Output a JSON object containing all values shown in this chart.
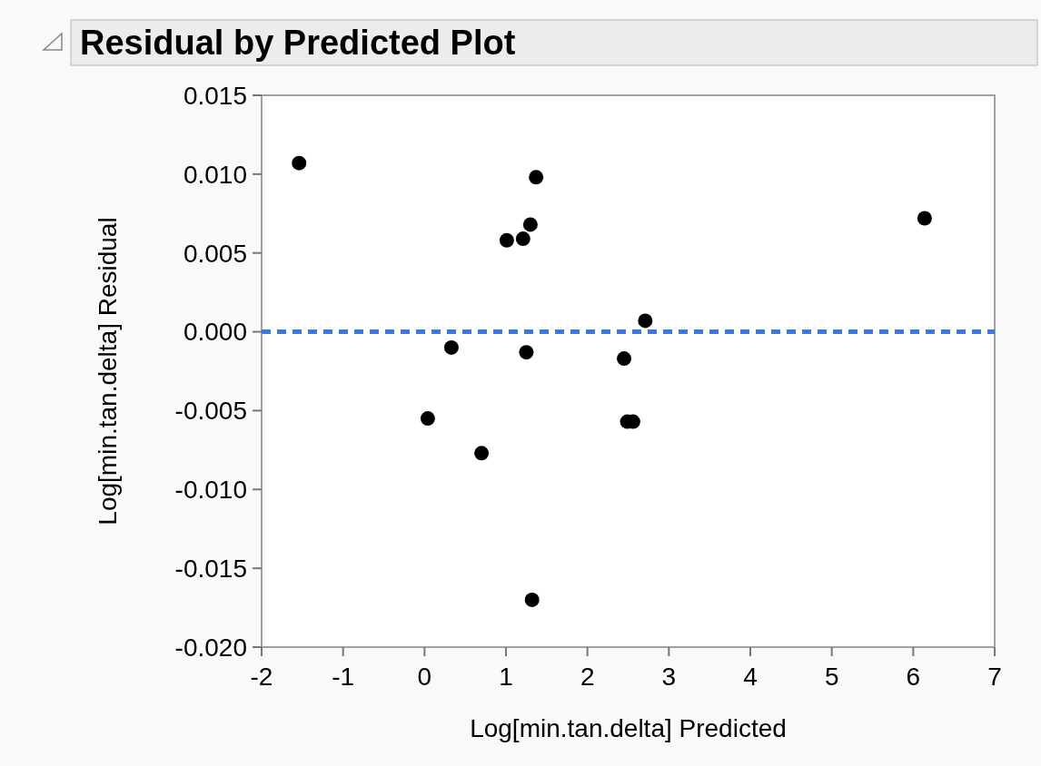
{
  "chart_data": {
    "type": "scatter",
    "title": "Residual by Predicted Plot",
    "xlabel": "Log[min.tan.delta] Predicted",
    "ylabel": "Log[min.tan.delta] Residual",
    "x": [
      -1.54,
      1.37,
      1.3,
      1.21,
      1.01,
      6.14,
      2.71,
      0.33,
      1.25,
      2.45,
      0.04,
      2.49,
      2.56,
      0.7,
      1.32
    ],
    "series": [
      {
        "color": "#000000",
        "values": [
          0.0107,
          0.0098,
          0.0068,
          0.0059,
          0.0058,
          0.0072,
          0.0007,
          -0.001,
          -0.0013,
          -0.0017,
          -0.0055,
          -0.0057,
          -0.0057,
          -0.0077,
          -0.017
        ]
      }
    ],
    "xlim": [
      -2,
      7
    ],
    "xticks": [
      -2,
      -1,
      0,
      1,
      2,
      3,
      4,
      5,
      6,
      7
    ],
    "ylim": [
      -0.02,
      0.015
    ],
    "yticks": [
      {
        "value": -0.02,
        "label": "-0.020"
      },
      {
        "value": -0.015,
        "label": "-0.015"
      },
      {
        "value": -0.01,
        "label": "-0.010"
      },
      {
        "value": -0.005,
        "label": "-0.005"
      },
      {
        "value": 0,
        "label": "0.000"
      },
      {
        "value": 0.005,
        "label": "0.005"
      },
      {
        "value": 0.01,
        "label": "0.010"
      },
      {
        "value": 0.015,
        "label": "0.015"
      }
    ],
    "ref_lines": [
      {
        "axis": "y",
        "value": 0,
        "color": "#3b78e7",
        "line_style": "dashed"
      }
    ],
    "marker": "circle"
  }
}
